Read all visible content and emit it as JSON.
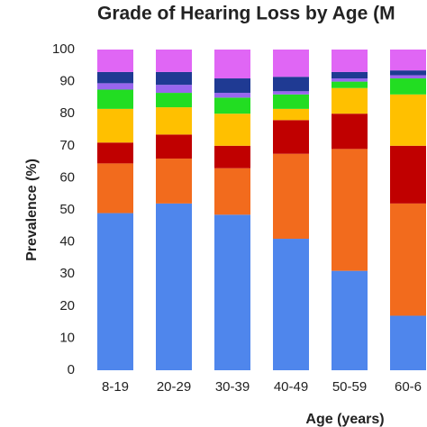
{
  "chart_data": {
    "type": "stacked-bar",
    "title": "Grade of Hearing Loss by Age (M",
    "x_label": "Age (years)",
    "y_label": "Prevalence (%)",
    "categories": [
      "8-19",
      "20-29",
      "30-39",
      "40-49",
      "50-59",
      "60-6"
    ],
    "series": [
      {
        "color": "#4f86ec",
        "values": [
          49,
          52,
          48.5,
          41,
          31,
          17
        ]
      },
      {
        "color": "#f26b1d",
        "values": [
          15.5,
          14,
          14.5,
          26.5,
          38,
          35
        ]
      },
      {
        "color": "#c00000",
        "values": [
          6.5,
          7.5,
          7,
          10.5,
          11,
          18
        ]
      },
      {
        "color": "#ffc000",
        "values": [
          10.5,
          8.5,
          10,
          3.5,
          8,
          16
        ]
      },
      {
        "color": "#22dd22",
        "values": [
          6,
          4.5,
          5,
          4.5,
          2,
          5
        ]
      },
      {
        "color": "#9966ee",
        "values": [
          2,
          2.5,
          1.5,
          1,
          1,
          1
        ]
      },
      {
        "color": "#1f3a93",
        "values": [
          3.5,
          4,
          4.5,
          4.5,
          2,
          1.5
        ]
      },
      {
        "color": "#e066f5",
        "values": [
          7,
          7,
          9,
          8.5,
          7,
          6.5
        ]
      }
    ],
    "ylim": [
      0,
      100
    ],
    "yticks": [
      0,
      10,
      20,
      30,
      40,
      50,
      60,
      70,
      80,
      90,
      100
    ],
    "grid": false
  }
}
